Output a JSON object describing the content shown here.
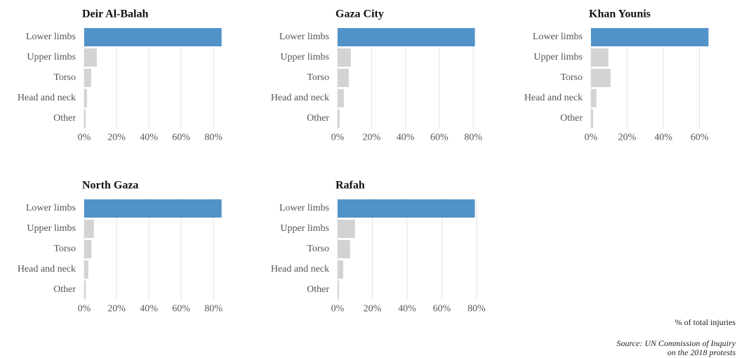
{
  "chart_data": [
    {
      "type": "bar",
      "orientation": "horizontal",
      "title": "Deir Al-Balah",
      "categories": [
        "Lower limbs",
        "Upper limbs",
        "Torso",
        "Head and neck",
        "Other"
      ],
      "values": [
        85,
        7.8,
        4.3,
        1.7,
        0.9
      ],
      "colors": [
        "#5192c9",
        "#d3d3d3",
        "#d3d3d3",
        "#d3d3d3",
        "#d3d3d3"
      ],
      "xlim": [
        0,
        86
      ],
      "xticks": [
        {
          "value": 0,
          "label": "0%"
        },
        {
          "value": 20,
          "label": "20%"
        },
        {
          "value": 40,
          "label": "40%"
        },
        {
          "value": 60,
          "label": "60%"
        },
        {
          "value": 80,
          "label": "80%"
        }
      ],
      "grid": true
    },
    {
      "type": "bar",
      "orientation": "horizontal",
      "title": "Gaza City",
      "categories": [
        "Lower limbs",
        "Upper limbs",
        "Torso",
        "Head and neck",
        "Other"
      ],
      "values": [
        81,
        7.8,
        6.6,
        3.7,
        1.2
      ],
      "colors": [
        "#5192c9",
        "#d3d3d3",
        "#d3d3d3",
        "#d3d3d3",
        "#d3d3d3"
      ],
      "xlim": [
        0,
        82
      ],
      "xticks": [
        {
          "value": 0,
          "label": "0%"
        },
        {
          "value": 20,
          "label": "20%"
        },
        {
          "value": 40,
          "label": "40%"
        },
        {
          "value": 60,
          "label": "60%"
        },
        {
          "value": 80,
          "label": "80%"
        }
      ],
      "grid": true
    },
    {
      "type": "bar",
      "orientation": "horizontal",
      "title": "Khan Younis",
      "categories": [
        "Lower limbs",
        "Upper limbs",
        "Torso",
        "Head and neck",
        "Other"
      ],
      "values": [
        65,
        9.6,
        10.8,
        3,
        1.2
      ],
      "colors": [
        "#5192c9",
        "#d3d3d3",
        "#d3d3d3",
        "#d3d3d3",
        "#d3d3d3"
      ],
      "xlim": [
        0,
        66
      ],
      "xticks": [
        {
          "value": 0,
          "label": "0%"
        },
        {
          "value": 20,
          "label": "20%"
        },
        {
          "value": 40,
          "label": "40%"
        },
        {
          "value": 60,
          "label": "60%"
        }
      ],
      "grid": true
    },
    {
      "type": "bar",
      "orientation": "horizontal",
      "title": "North Gaza",
      "categories": [
        "Lower limbs",
        "Upper limbs",
        "Torso",
        "Head and neck",
        "Other"
      ],
      "values": [
        85,
        6,
        4.5,
        2.5,
        1
      ],
      "colors": [
        "#5192c9",
        "#d3d3d3",
        "#d3d3d3",
        "#d3d3d3",
        "#d3d3d3"
      ],
      "xlim": [
        0,
        86
      ],
      "xticks": [
        {
          "value": 0,
          "label": "0%"
        },
        {
          "value": 20,
          "label": "20%"
        },
        {
          "value": 40,
          "label": "40%"
        },
        {
          "value": 60,
          "label": "60%"
        },
        {
          "value": 80,
          "label": "80%"
        }
      ],
      "grid": true
    },
    {
      "type": "bar",
      "orientation": "horizontal",
      "title": "Rafah",
      "categories": [
        "Lower limbs",
        "Upper limbs",
        "Torso",
        "Head and neck",
        "Other"
      ],
      "values": [
        79,
        10,
        7.2,
        3.2,
        0.8
      ],
      "colors": [
        "#5192c9",
        "#d3d3d3",
        "#d3d3d3",
        "#d3d3d3",
        "#d3d3d3"
      ],
      "xlim": [
        0,
        80
      ],
      "xticks": [
        {
          "value": 0,
          "label": "0%"
        },
        {
          "value": 20,
          "label": "20%"
        },
        {
          "value": 40,
          "label": "40%"
        },
        {
          "value": 60,
          "label": "60%"
        },
        {
          "value": 80,
          "label": "80%"
        }
      ],
      "grid": true
    }
  ],
  "xlabel": "% of total injuries",
  "source": [
    "Source: UN Commission of Inquiry",
    "on the 2018 protests"
  ]
}
